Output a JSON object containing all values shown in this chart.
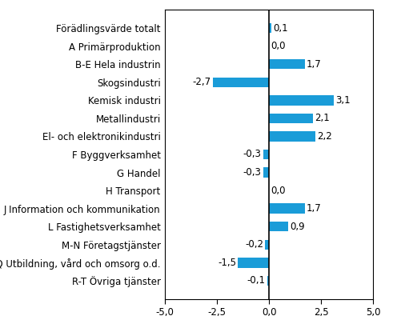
{
  "categories": [
    "R-T Övriga tjänster",
    "O-Q Utbildning, vård och omsorg o.d.",
    "M-N Företagstjänster",
    "L Fastighetsverksamhet",
    "J Information och kommunikation",
    "H Transport",
    "G Handel",
    "F Byggverksamhet",
    "El- och elektronikindustri",
    "Metallindustri",
    "Kemisk industri",
    "Skogsindustri",
    "B-E Hela industrin",
    "A Primärproduktion",
    "Förädlingsvärde totalt"
  ],
  "values": [
    -0.1,
    -1.5,
    -0.2,
    0.9,
    1.7,
    0.0,
    -0.3,
    -0.3,
    2.2,
    2.1,
    3.1,
    -2.7,
    1.7,
    0.0,
    0.1
  ],
  "bar_color": "#1a9cd8",
  "xlim": [
    -5.0,
    5.0
  ],
  "xticks": [
    -5.0,
    -2.5,
    0.0,
    2.5,
    5.0
  ],
  "xtick_labels": [
    "-5,0",
    "-2,5",
    "0,0",
    "2,5",
    "5,0"
  ],
  "label_fontsize": 8.5,
  "value_fontsize": 8.5,
  "bar_height": 0.55,
  "figsize": [
    4.91,
    4.15
  ],
  "dpi": 100
}
